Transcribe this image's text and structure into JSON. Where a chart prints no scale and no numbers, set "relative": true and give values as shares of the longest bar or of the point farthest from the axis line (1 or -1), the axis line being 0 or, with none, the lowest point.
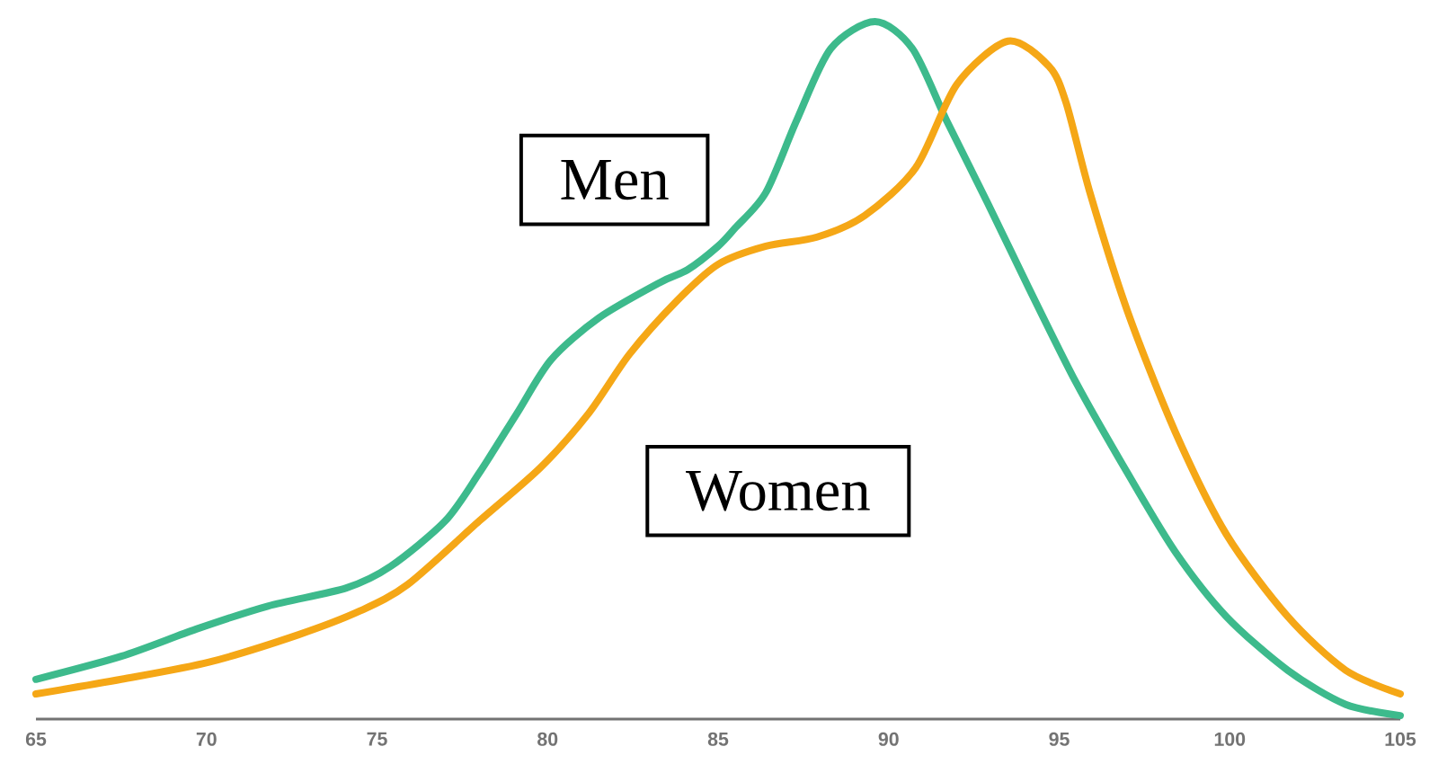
{
  "chart_data": {
    "type": "line",
    "relative": true,
    "xlim": [
      65,
      105
    ],
    "xticks": [
      65,
      70,
      75,
      80,
      85,
      90,
      95,
      100,
      105
    ],
    "grid": false,
    "legend": false,
    "marker": "none",
    "line_style": "solid",
    "series": [
      {
        "name": "Men",
        "color": "#3dba8c",
        "x": [
          65,
          67.5,
          69.7,
          71.8,
          74.1,
          75.4,
          77.0,
          78.0,
          79.1,
          80.1,
          81.5,
          83.3,
          84.1,
          85.0,
          85.5,
          86.4,
          87.3,
          88.3,
          89.6,
          90.7,
          91.7,
          92.9,
          94.1,
          95.5,
          97.0,
          98.4,
          99.9,
          101.7,
          103.4,
          105
        ],
        "values": [
          0.057,
          0.09,
          0.129,
          0.162,
          0.188,
          0.219,
          0.284,
          0.353,
          0.438,
          0.515,
          0.575,
          0.626,
          0.644,
          0.678,
          0.704,
          0.755,
          0.858,
          0.961,
          1.0,
          0.961,
          0.858,
          0.74,
          0.619,
          0.482,
          0.353,
          0.24,
          0.147,
          0.07,
          0.021,
          0.005
        ]
      },
      {
        "name": "Women",
        "color": "#f5a716",
        "x": [
          65,
          67.5,
          70.1,
          72.7,
          74.5,
          75.9,
          78.0,
          79.8,
          81.2,
          82.4,
          83.8,
          85.0,
          86.4,
          87.9,
          89.3,
          90.8,
          92.0,
          93.5,
          94.7,
          95.2,
          95.9,
          97.0,
          98.4,
          99.9,
          101.7,
          103.4,
          105
        ],
        "values": [
          0.036,
          0.057,
          0.082,
          0.121,
          0.155,
          0.193,
          0.284,
          0.361,
          0.438,
          0.523,
          0.6,
          0.652,
          0.678,
          0.691,
          0.722,
          0.791,
          0.91,
          0.972,
          0.936,
          0.884,
          0.755,
          0.585,
          0.412,
          0.265,
          0.147,
          0.07,
          0.036
        ]
      }
    ]
  }
}
